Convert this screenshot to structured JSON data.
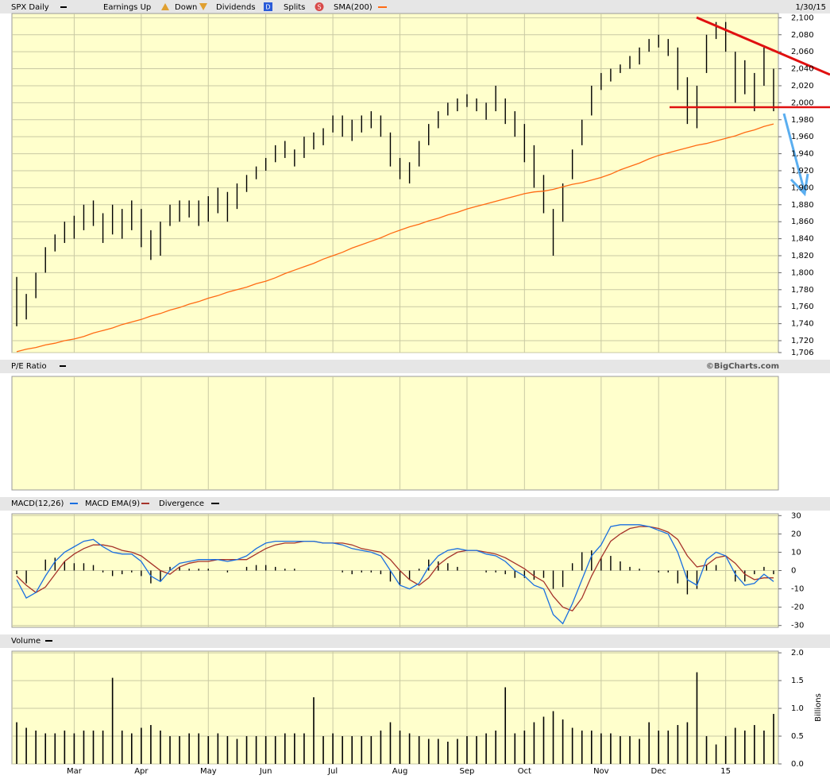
{
  "chart_data": [
    {
      "type": "ohlc",
      "date": "1/30/15",
      "credit": "©BigCharts.com",
      "legend": {
        "earnings_up": "Earnings Up",
        "down": "Down",
        "dividends": "Dividends",
        "dividends_icon": "D",
        "splits": "Splits",
        "splits_icon": "S"
      },
      "categories": [
        null,
        null,
        null,
        null,
        null,
        null,
        "Mar",
        null,
        null,
        null,
        null,
        null,
        null,
        "Apr",
        null,
        null,
        null,
        null,
        null,
        null,
        "May",
        null,
        null,
        null,
        null,
        null,
        "Jun",
        null,
        null,
        null,
        null,
        null,
        null,
        "Jul",
        null,
        null,
        null,
        null,
        null,
        null,
        "Aug",
        null,
        null,
        null,
        null,
        null,
        null,
        "Sep",
        null,
        null,
        null,
        null,
        null,
        "Oct",
        null,
        null,
        null,
        null,
        null,
        null,
        null,
        "Nov",
        null,
        null,
        null,
        null,
        null,
        "Dec",
        null,
        null,
        null,
        null,
        null,
        null,
        "15",
        null,
        null,
        null,
        null,
        null
      ],
      "series": [
        {
          "name": "SPX Daily",
          "color": "#000000",
          "high": [
            1795,
            1775,
            1800,
            1830,
            1845,
            1860,
            1867,
            1880,
            1885,
            1870,
            1880,
            1875,
            1885,
            1875,
            1850,
            1860,
            1880,
            1885,
            1885,
            1885,
            1890,
            1900,
            1895,
            1905,
            1915,
            1925,
            1935,
            1950,
            1955,
            1945,
            1960,
            1965,
            1970,
            1985,
            1985,
            1980,
            1985,
            1990,
            1985,
            1965,
            1935,
            1930,
            1955,
            1975,
            1990,
            2000,
            2005,
            2010,
            2005,
            2000,
            2020,
            2005,
            1990,
            1975,
            1950,
            1915,
            1875,
            1905,
            1945,
            1980,
            2020,
            2035,
            2040,
            2045,
            2055,
            2065,
            2075,
            2080,
            2075,
            2065,
            2030,
            2020,
            2080,
            2095,
            2095,
            2060,
            2050,
            2035,
            2065,
            2040
          ],
          "low": [
            1737,
            1745,
            1770,
            1800,
            1825,
            1835,
            1840,
            1850,
            1855,
            1835,
            1845,
            1840,
            1850,
            1830,
            1815,
            1820,
            1855,
            1860,
            1865,
            1855,
            1860,
            1870,
            1860,
            1875,
            1895,
            1910,
            1920,
            1930,
            1935,
            1925,
            1935,
            1945,
            1950,
            1965,
            1960,
            1955,
            1965,
            1970,
            1960,
            1925,
            1910,
            1905,
            1925,
            1950,
            1970,
            1985,
            1990,
            1995,
            1990,
            1980,
            1990,
            1975,
            1960,
            1930,
            1900,
            1870,
            1820,
            1860,
            1910,
            1950,
            1985,
            2015,
            2025,
            2035,
            2040,
            2045,
            2060,
            2065,
            2055,
            2015,
            1975,
            1970,
            2035,
            2075,
            2060,
            2000,
            2010,
            1990,
            2020,
            1990
          ]
        },
        {
          "name": "SMA(200)",
          "color": "#ff6a13",
          "values": [
            1707,
            1710,
            1712,
            1715,
            1717,
            1720,
            1722,
            1725,
            1729,
            1732,
            1735,
            1739,
            1742,
            1745,
            1749,
            1752,
            1756,
            1759,
            1763,
            1766,
            1770,
            1773,
            1777,
            1780,
            1783,
            1787,
            1790,
            1794,
            1799,
            1803,
            1807,
            1811,
            1816,
            1820,
            1824,
            1829,
            1833,
            1837,
            1841,
            1846,
            1850,
            1854,
            1857,
            1861,
            1864,
            1868,
            1871,
            1875,
            1878,
            1881,
            1884,
            1887,
            1890,
            1893,
            1895,
            1896,
            1898,
            1901,
            1904,
            1906,
            1909,
            1912,
            1916,
            1921,
            1925,
            1929,
            1934,
            1938,
            1941,
            1944,
            1947,
            1950,
            1952,
            1955,
            1958,
            1961,
            1965,
            1968,
            1972,
            1975
          ]
        }
      ],
      "ylim": [
        1706,
        2105
      ],
      "yticks": [
        {
          "value": 2100,
          "label": "2,100"
        },
        {
          "value": 2080,
          "label": "2,080"
        },
        {
          "value": 2060,
          "label": "2,060"
        },
        {
          "value": 2040,
          "label": "2,040"
        },
        {
          "value": 2020,
          "label": "2,020"
        },
        {
          "value": 2000,
          "label": "2,000"
        },
        {
          "value": 1980,
          "label": "1,980"
        },
        {
          "value": 1960,
          "label": "1,960"
        },
        {
          "value": 1940,
          "label": "1,940"
        },
        {
          "value": 1920,
          "label": "1,920"
        },
        {
          "value": 1900,
          "label": "1,900"
        },
        {
          "value": 1880,
          "label": "1,880"
        },
        {
          "value": 1860,
          "label": "1,860"
        },
        {
          "value": 1840,
          "label": "1,840"
        },
        {
          "value": 1820,
          "label": "1,820"
        },
        {
          "value": 1800,
          "label": "1,800"
        },
        {
          "value": 1780,
          "label": "1,780"
        },
        {
          "value": 1760,
          "label": "1,760"
        },
        {
          "value": 1740,
          "label": "1,740"
        },
        {
          "value": 1720,
          "label": "1,720"
        },
        {
          "value": 1706,
          "label": "1,706"
        }
      ],
      "grid": true
    },
    {
      "type": "empty",
      "title": "P/E Ratio",
      "grid": true
    },
    {
      "type": "macd",
      "series": [
        {
          "name": "MACD(12,26)",
          "color": "#1a6fe0",
          "values": [
            -5,
            -15,
            -12,
            -3,
            5,
            10,
            13,
            16,
            17,
            13,
            10,
            9,
            9,
            5,
            -3,
            -6,
            0,
            4,
            5,
            6,
            6,
            6,
            5,
            6,
            8,
            12,
            15,
            16,
            16,
            16,
            16,
            16,
            15,
            15,
            14,
            12,
            11,
            10,
            8,
            0,
            -8,
            -10,
            -7,
            2,
            8,
            11,
            12,
            11,
            11,
            9,
            8,
            5,
            0,
            -3,
            -8,
            -10,
            -24,
            -29,
            -18,
            -5,
            8,
            14,
            24,
            25,
            25,
            25,
            24,
            22,
            20,
            10,
            -5,
            -8,
            6,
            10,
            8,
            -2,
            -8,
            -7,
            -2,
            -6
          ]
        },
        {
          "name": "MACD EMA(9)",
          "color": "#a5322a",
          "values": [
            -3,
            -8,
            -12,
            -9,
            -2,
            5,
            9,
            12,
            14,
            14,
            13,
            11,
            10,
            8,
            4,
            0,
            -2,
            2,
            4,
            5,
            5,
            6,
            6,
            6,
            6,
            9,
            12,
            14,
            15,
            15,
            16,
            16,
            15,
            15,
            15,
            14,
            12,
            11,
            10,
            6,
            0,
            -5,
            -8,
            -4,
            3,
            7,
            10,
            11,
            11,
            10,
            9,
            7,
            4,
            1,
            -3,
            -6,
            -14,
            -20,
            -22,
            -15,
            -3,
            7,
            16,
            20,
            23,
            24,
            24,
            23,
            21,
            17,
            8,
            2,
            3,
            7,
            8,
            4,
            -2,
            -5,
            -4,
            -4
          ]
        },
        {
          "name": "Divergence",
          "color": "#000000",
          "values": [
            -2,
            -7,
            0,
            6,
            7,
            5,
            4,
            4,
            3,
            -1,
            -3,
            -2,
            -1,
            -3,
            -7,
            -6,
            2,
            2,
            1,
            1,
            1,
            0,
            -1,
            0,
            2,
            3,
            3,
            2,
            1,
            1,
            0,
            0,
            0,
            0,
            -1,
            -2,
            -1,
            -1,
            -2,
            -6,
            -8,
            -5,
            1,
            6,
            5,
            4,
            2,
            0,
            0,
            -1,
            -1,
            -2,
            -4,
            -4,
            -5,
            -4,
            -10,
            -9,
            4,
            10,
            11,
            7,
            8,
            5,
            2,
            1,
            0,
            -1,
            -1,
            -7,
            -13,
            -10,
            3,
            3,
            0,
            -6,
            -6,
            -2,
            2,
            -2
          ]
        }
      ],
      "ylim": [
        -31,
        31
      ],
      "yticks": [
        30,
        20,
        10,
        0,
        -10,
        -20,
        -30
      ],
      "grid": true
    },
    {
      "type": "bar",
      "title": "Volume",
      "ylabel": "Billions",
      "color": "#000000",
      "values": [
        0.75,
        0.65,
        0.6,
        0.55,
        0.55,
        0.6,
        0.55,
        0.6,
        0.6,
        0.6,
        1.55,
        0.6,
        0.55,
        0.65,
        0.7,
        0.6,
        0.5,
        0.5,
        0.55,
        0.55,
        0.5,
        0.55,
        0.5,
        0.45,
        0.5,
        0.5,
        0.5,
        0.5,
        0.55,
        0.55,
        0.55,
        1.2,
        0.5,
        0.55,
        0.5,
        0.5,
        0.5,
        0.5,
        0.6,
        0.75,
        0.6,
        0.55,
        0.5,
        0.45,
        0.45,
        0.4,
        0.45,
        0.5,
        0.5,
        0.55,
        0.6,
        1.38,
        0.55,
        0.6,
        0.75,
        0.85,
        0.95,
        0.8,
        0.65,
        0.6,
        0.6,
        0.55,
        0.55,
        0.5,
        0.5,
        0.45,
        0.75,
        0.6,
        0.6,
        0.7,
        0.75,
        1.65,
        0.5,
        0.35,
        0.5,
        0.65,
        0.6,
        0.7,
        0.6,
        0.9
      ],
      "ylim": [
        0,
        2.03
      ],
      "yticks": [
        {
          "value": 2,
          "label": "2.0"
        },
        {
          "value": 1.5,
          "label": "1.5"
        },
        {
          "value": 1,
          "label": "1.0"
        },
        {
          "value": 0.5,
          "label": "0.5"
        },
        {
          "value": 0,
          "label": "0.0"
        }
      ],
      "grid": true
    }
  ]
}
